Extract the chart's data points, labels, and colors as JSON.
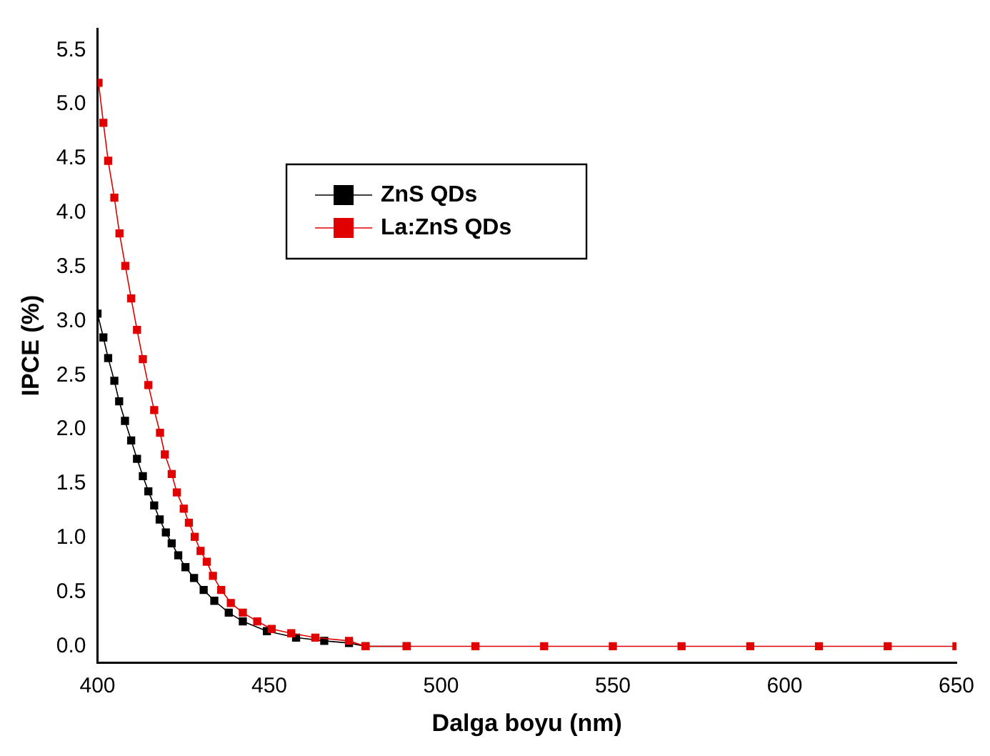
{
  "chart_data": {
    "type": "line",
    "xlabel": "Dalga boyu (nm)",
    "ylabel": "IPCE (%)",
    "xlim": [
      400,
      650
    ],
    "xticks": [
      400,
      450,
      500,
      550,
      600,
      650
    ],
    "ylim": [
      -0.15,
      5.7
    ],
    "yticks": [
      {
        "value": 0,
        "label": "0.0"
      },
      {
        "value": 0.5,
        "label": "0.5"
      },
      {
        "value": 1,
        "label": "1.0"
      },
      {
        "value": 1.5,
        "label": "1.5"
      },
      {
        "value": 2,
        "label": "2.0"
      },
      {
        "value": 2.5,
        "label": "2.5"
      },
      {
        "value": 3,
        "label": "3.0"
      },
      {
        "value": 3.5,
        "label": "3.5"
      },
      {
        "value": 4,
        "label": "4.0"
      },
      {
        "value": 4.5,
        "label": "4.5"
      },
      {
        "value": 5,
        "label": "5.0"
      },
      {
        "value": 5.5,
        "label": "5.5"
      }
    ],
    "marker": "square",
    "line_style": "solid",
    "legend": "top",
    "grid": false,
    "series": [
      {
        "name": "ZnS QDs",
        "color": "#000000",
        "x": [
          400,
          401.7,
          403.1,
          404.9,
          406.3,
          408,
          409.8,
          411.5,
          413.2,
          414.8,
          416.5,
          418.1,
          419.9,
          421.6,
          423.5,
          425.6,
          428.1,
          430.9,
          434,
          438.2,
          442.3,
          449.3,
          457.8,
          466,
          473.2,
          478,
          490
        ],
        "values": [
          3.07,
          2.85,
          2.66,
          2.45,
          2.26,
          2.08,
          1.9,
          1.73,
          1.57,
          1.43,
          1.3,
          1.17,
          1.05,
          0.95,
          0.84,
          0.73,
          0.63,
          0.52,
          0.42,
          0.31,
          0.23,
          0.14,
          0.08,
          0.05,
          0.03,
          0,
          0
        ]
      },
      {
        "name": "La:ZnS QDs",
        "color": "#e00000",
        "x": [
          400.3,
          401.7,
          403.1,
          404.9,
          406.4,
          408.1,
          409.8,
          411.5,
          413.2,
          414.8,
          416.5,
          418.2,
          419.6,
          421.6,
          423.1,
          425.1,
          426.6,
          428.3,
          430,
          431.8,
          433.6,
          436,
          438.8,
          442.3,
          446.5,
          450.7,
          456.4,
          463.4,
          473.2,
          478,
          490,
          510,
          530,
          550,
          570,
          590,
          610,
          630,
          650
        ],
        "values": [
          5.2,
          4.83,
          4.48,
          4.14,
          3.81,
          3.51,
          3.21,
          2.92,
          2.65,
          2.41,
          2.18,
          1.97,
          1.77,
          1.59,
          1.42,
          1.27,
          1.14,
          1.01,
          0.88,
          0.78,
          0.65,
          0.52,
          0.4,
          0.31,
          0.23,
          0.16,
          0.12,
          0.08,
          0.05,
          0,
          0,
          0,
          0,
          0,
          0,
          0,
          0,
          0,
          0
        ]
      }
    ]
  }
}
